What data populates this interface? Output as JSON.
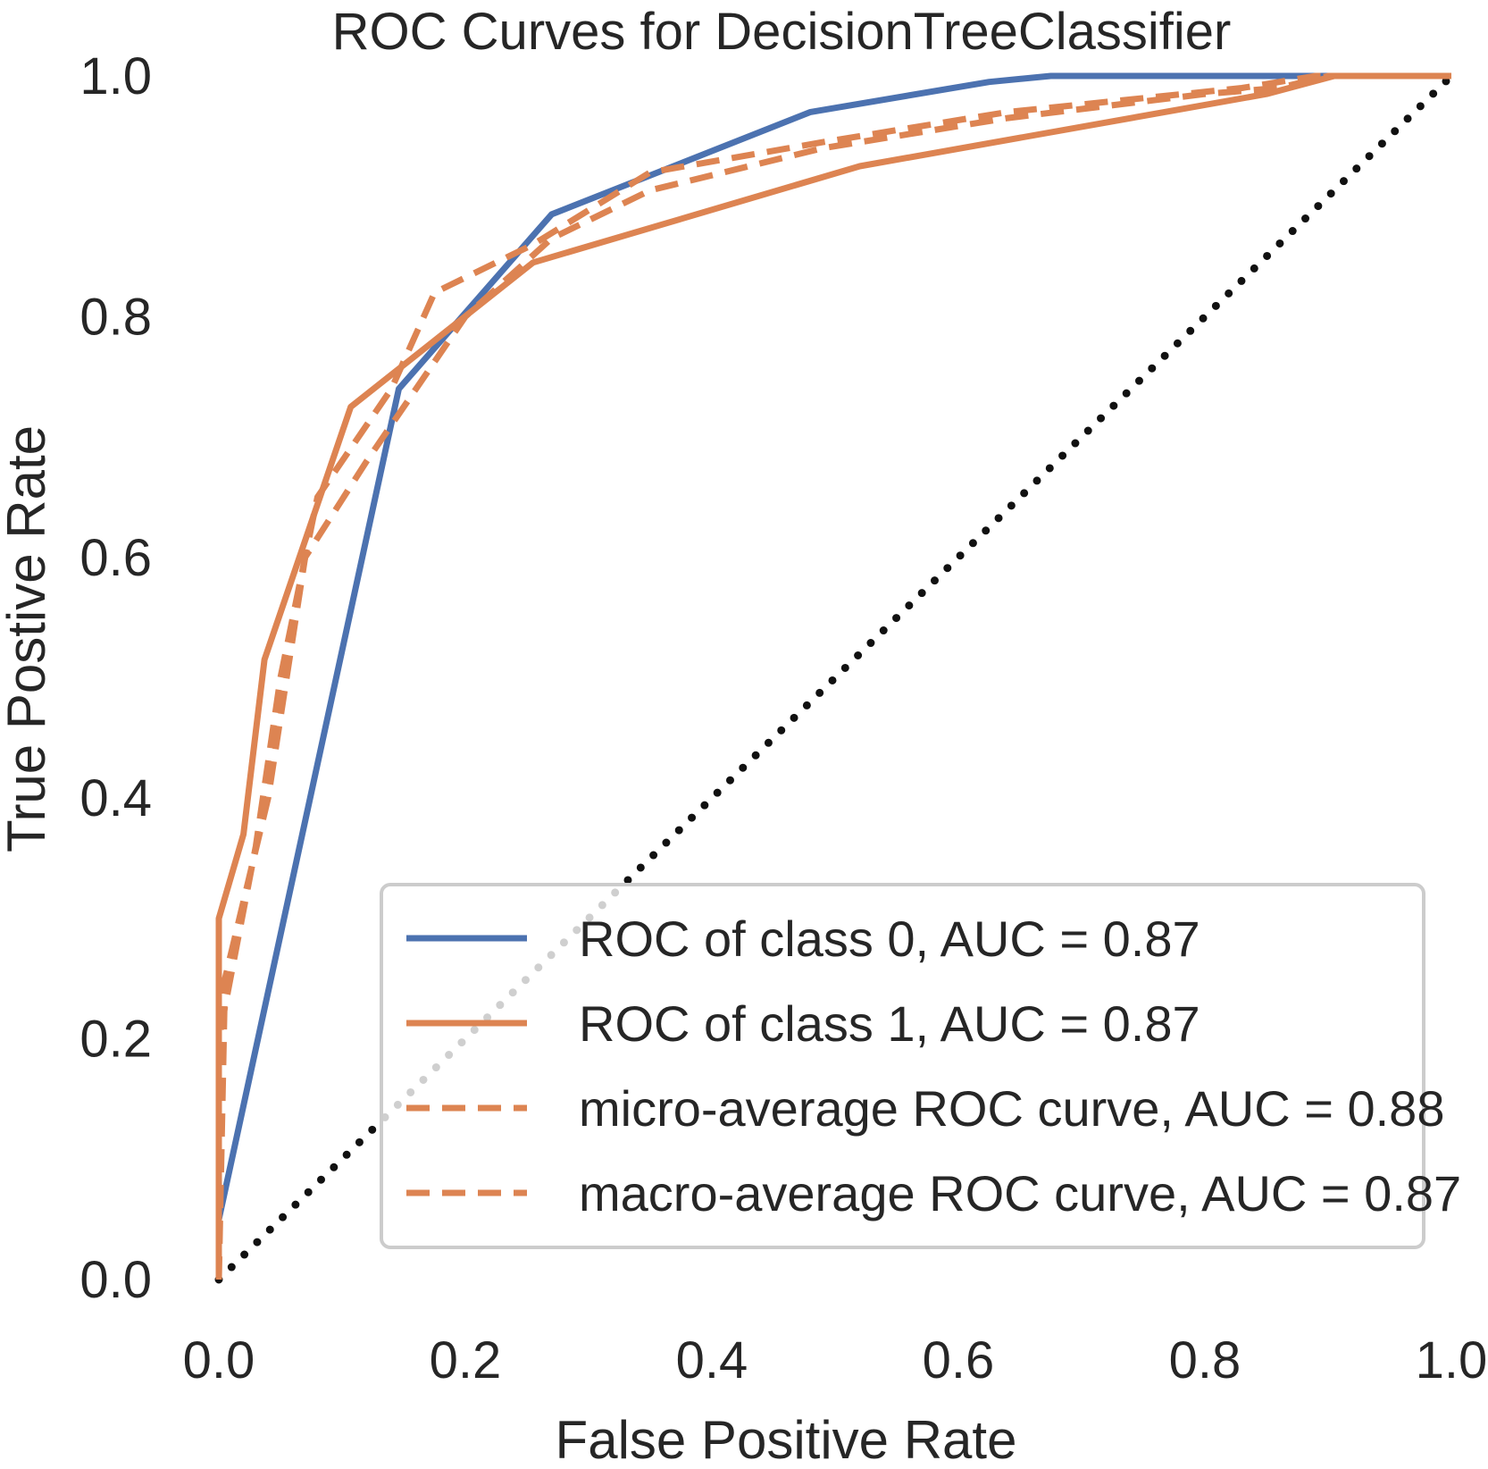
{
  "chart_data": {
    "type": "line",
    "title": "ROC Curves for DecisionTreeClassifier",
    "xlabel": "False Positive Rate",
    "ylabel": "True Postive Rate",
    "xlim": [
      0.0,
      1.0
    ],
    "ylim": [
      0.0,
      1.0
    ],
    "x_ticks": [
      "0.0",
      "0.2",
      "0.4",
      "0.6",
      "0.8",
      "1.0"
    ],
    "y_ticks": [
      "0.0",
      "0.2",
      "0.4",
      "0.6",
      "0.8",
      "1.0"
    ],
    "grid": false,
    "legend_position": "lower-right",
    "colors": {
      "blue": "#4c72b0",
      "orange": "#dd8452",
      "diagonal": "#111111"
    },
    "series": [
      {
        "name": "ROC of class 0, AUC = 0.87",
        "style": "solid",
        "color": "#4c72b0",
        "x": [
          0.0,
          0.0,
          0.146,
          0.27,
          0.48,
          0.625,
          0.675,
          1.0
        ],
        "y": [
          0.0,
          0.05,
          0.74,
          0.885,
          0.97,
          0.995,
          1.0,
          1.0
        ]
      },
      {
        "name": "ROC of class 1, AUC = 0.87",
        "style": "solid",
        "color": "#dd8452",
        "x": [
          0.0,
          0.0,
          0.02,
          0.037,
          0.107,
          0.255,
          0.52,
          0.85,
          0.905,
          1.0
        ],
        "y": [
          0.0,
          0.3,
          0.37,
          0.515,
          0.725,
          0.845,
          0.925,
          0.985,
          1.0,
          1.0
        ]
      },
      {
        "name": "micro-average ROC curve, AUC = 0.88",
        "style": "dashed",
        "color": "#dd8452",
        "x": [
          0.0,
          0.0,
          0.03,
          0.05,
          0.08,
          0.14,
          0.175,
          0.255,
          0.35,
          0.49,
          0.64,
          0.83,
          0.89,
          1.0
        ],
        "y": [
          0.0,
          0.2,
          0.36,
          0.5,
          0.65,
          0.74,
          0.82,
          0.86,
          0.92,
          0.945,
          0.97,
          0.99,
          1.0,
          1.0
        ]
      },
      {
        "name": "macro-average ROC curve, AUC = 0.87",
        "style": "dashed",
        "color": "#dd8452",
        "x": [
          0.0,
          0.005,
          0.04,
          0.07,
          0.12,
          0.2,
          0.27,
          0.35,
          0.49,
          0.64,
          0.8,
          0.86,
          0.9,
          1.0
        ],
        "y": [
          0.0,
          0.25,
          0.4,
          0.6,
          0.68,
          0.8,
          0.865,
          0.905,
          0.94,
          0.965,
          0.985,
          0.99,
          1.0,
          1.0
        ]
      },
      {
        "name": "chance",
        "style": "dotted",
        "color": "#111111",
        "x": [
          0.0,
          1.0
        ],
        "y": [
          0.0,
          1.0
        ]
      }
    ]
  }
}
